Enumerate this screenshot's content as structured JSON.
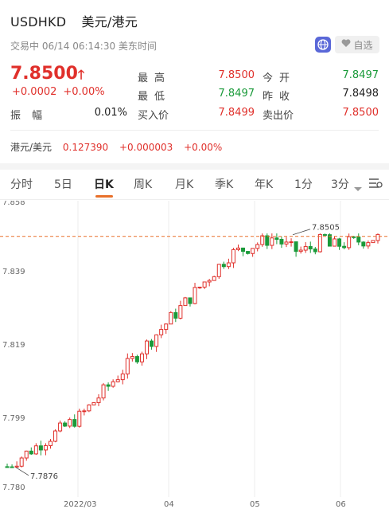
{
  "header": {
    "symbol": "USDHKD",
    "name": "美元/港元",
    "status": "交易中 06/14 06:14:30 美东时间",
    "favorite_label": "自选"
  },
  "quote": {
    "price": "7.8500",
    "change": "+0.0002",
    "change_pct": "+0.00%"
  },
  "stats": [
    {
      "label": "最高",
      "value": "7.8500",
      "color": "#e0302b"
    },
    {
      "label": "今开",
      "value": "7.8497",
      "color": "#1a9a3a"
    },
    {
      "label": "最低",
      "value": "7.8497",
      "color": "#1a9a3a"
    },
    {
      "label": "昨收",
      "value": "7.8498",
      "color": "#222222"
    },
    {
      "label": "振幅",
      "value": "0.01%",
      "color": "#222222"
    },
    {
      "label": "买入价",
      "value": "7.8499",
      "color": "#e0302b"
    },
    {
      "label": "卖出价",
      "value": "7.8500",
      "color": "#e0302b"
    }
  ],
  "cross_rate": {
    "label": "港元/美元",
    "value": "0.127390",
    "change": "+0.000003",
    "change_pct": "+0.00%"
  },
  "tabs": [
    "分时",
    "5日",
    "日K",
    "周K",
    "月K",
    "季K",
    "年K",
    "1分",
    "3分"
  ],
  "active_tab": "日K",
  "chart_data": {
    "type": "candlestick",
    "y_ticks": [
      "7.858",
      "7.839",
      "7.819",
      "7.799",
      "7.780"
    ],
    "x_ticks": [
      "2022/03",
      "04",
      "05",
      "06"
    ],
    "ylim": [
      7.78,
      7.858
    ],
    "high_marker": "7.8505",
    "low_marker": "7.7876",
    "reference_line": 7.85,
    "up_color": "#e0302b",
    "down_color": "#1a9a3a"
  }
}
